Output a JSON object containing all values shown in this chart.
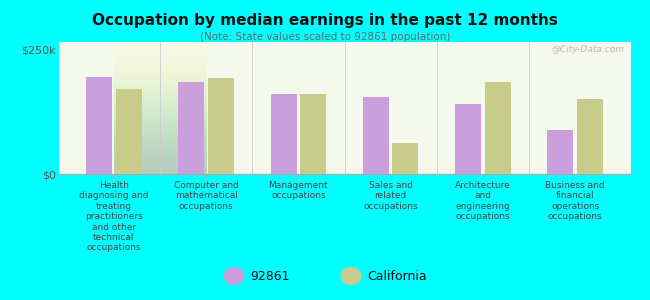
{
  "title": "Occupation by median earnings in the past 12 months",
  "subtitle": "(Note: State values scaled to 92861 population)",
  "background_color": "#00FFFF",
  "plot_bg_top": "#e8f0d0",
  "plot_bg_bottom": "#f5f8ec",
  "categories": [
    "Health\ndiagnosing and\ntreating\npractitioners\nand other\ntechnical\noccupations",
    "Computer and\nmathematical\noccupations",
    "Management\noccupations",
    "Sales and\nrelated\noccupations",
    "Architecture\nand\nengineering\noccupations",
    "Business and\nfinancial\noperations\noccupations"
  ],
  "values_92861": [
    195000,
    185000,
    160000,
    155000,
    140000,
    88000
  ],
  "values_california": [
    170000,
    192000,
    160000,
    62000,
    185000,
    150000
  ],
  "color_92861": "#c9a0dc",
  "color_california": "#c8cc8a",
  "ytick_labels": [
    "$250k",
    "$0"
  ],
  "ytick_values": [
    250000,
    0
  ],
  "ymax": 265000,
  "legend_labels": [
    "92861",
    "California"
  ],
  "watermark": "@City-Data.com"
}
